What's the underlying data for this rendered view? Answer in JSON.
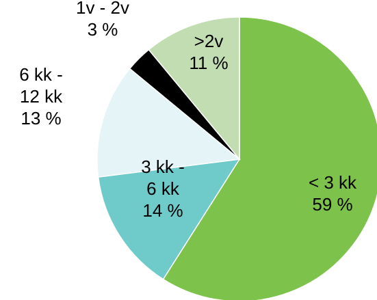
{
  "chart_data": {
    "type": "pie",
    "title": "",
    "start_angle_deg": 0,
    "direction": "clockwise",
    "slices": [
      {
        "label_lines": [
          "< 3 kk",
          "59 %"
        ],
        "value": 59,
        "color": "#7dc24a"
      },
      {
        "label_lines": [
          "3 kk -",
          "6 kk",
          "14 %"
        ],
        "value": 14,
        "color": "#6fcbc9"
      },
      {
        "label_lines": [
          "6 kk -",
          "12 kk",
          "13 %"
        ],
        "value": 13,
        "color": "#e4f4f7"
      },
      {
        "label_lines": [
          "1v - 2v",
          "3 %"
        ],
        "value": 3,
        "color": "#000000"
      },
      {
        "label_lines": [
          ">2v",
          "11 %"
        ],
        "value": 11,
        "color": "#c3ddb2"
      }
    ]
  }
}
